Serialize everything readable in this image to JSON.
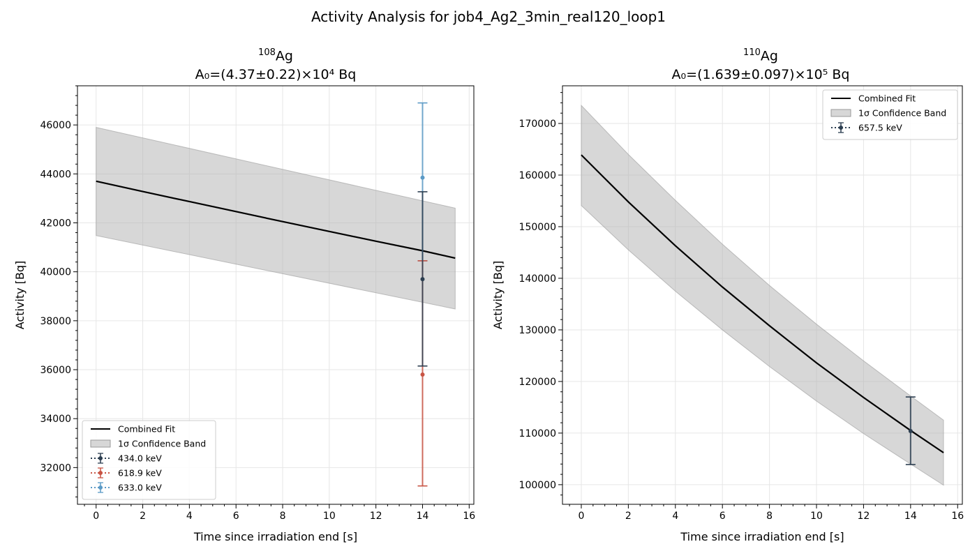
{
  "suptitle": "Activity Analysis for job4_Ag2_3min_real120_loop1",
  "chart_data": [
    {
      "type": "line",
      "isotope_mass": "108",
      "isotope_symbol": "Ag",
      "subtitle": "A₀=(4.37±0.22)×10⁴ Bq",
      "xlabel": "Time since irradiation end [s]",
      "ylabel": "Activity [Bq]",
      "xlim": [
        -0.8,
        16.2
      ],
      "ylim": [
        30500,
        47600
      ],
      "xticks": [
        0,
        2,
        4,
        6,
        8,
        10,
        12,
        14,
        16
      ],
      "yticks": [
        32000,
        34000,
        36000,
        38000,
        40000,
        42000,
        44000,
        46000
      ],
      "grid": true,
      "legend_position": "lower left",
      "fit": {
        "name": "Combined Fit",
        "color": "#000000",
        "x": [
          0,
          2,
          4,
          6,
          8,
          10,
          12,
          14,
          15.4
        ],
        "y": [
          43700,
          43280,
          42870,
          42460,
          42050,
          41650,
          41250,
          40860,
          40560
        ]
      },
      "band": {
        "name": "1σ Confidence Band",
        "color": "#b0b0b0",
        "x": [
          0,
          15.4
        ],
        "lower": [
          41480,
          38480
        ],
        "upper": [
          45900,
          42600
        ]
      },
      "series": [
        {
          "name": "633.0 keV",
          "color": "#5b9ac6",
          "x": 14,
          "y": 43850,
          "yerr_low": 40450,
          "yerr_high": 46900
        },
        {
          "name": "618.9 keV",
          "color": "#c85444",
          "x": 14,
          "y": 35800,
          "yerr_low": 31250,
          "yerr_high": 40450
        },
        {
          "name": "434.0 keV",
          "color": "#2c3e50",
          "x": 14,
          "y": 39700,
          "yerr_low": 36150,
          "yerr_high": 43270
        }
      ],
      "legend": [
        "Combined Fit",
        "1σ Confidence Band",
        "434.0 keV",
        "618.9 keV",
        "633.0 keV"
      ]
    },
    {
      "type": "line",
      "isotope_mass": "110",
      "isotope_symbol": "Ag",
      "subtitle": "A₀=(1.639±0.097)×10⁵ Bq",
      "xlabel": "Time since irradiation end [s]",
      "ylabel": "Activity [Bq]",
      "xlim": [
        -0.8,
        16.2
      ],
      "ylim": [
        96200,
        177300
      ],
      "xticks": [
        0,
        2,
        4,
        6,
        8,
        10,
        12,
        14,
        16
      ],
      "yticks": [
        100000,
        110000,
        120000,
        130000,
        140000,
        150000,
        160000,
        170000
      ],
      "grid": true,
      "legend_position": "upper right",
      "fit": {
        "name": "Combined Fit",
        "color": "#000000",
        "x": [
          0,
          2,
          4,
          6,
          8,
          10,
          12,
          14,
          15.4
        ],
        "y": [
          163900,
          154800,
          146300,
          138300,
          130800,
          123600,
          116900,
          110500,
          106200
        ]
      },
      "band": {
        "name": "1σ Confidence Band",
        "color": "#b0b0b0",
        "x": [
          0,
          2,
          4,
          6,
          8,
          10,
          12,
          14,
          15.4
        ],
        "lower": [
          154100,
          145500,
          137500,
          130000,
          122900,
          116200,
          109900,
          104000,
          99900
        ],
        "upper": [
          173500,
          164000,
          155100,
          146600,
          138600,
          131100,
          124000,
          117200,
          112500
        ]
      },
      "series": [
        {
          "name": "657.5 keV",
          "color": "#2c3e50",
          "x": 14,
          "y": 110400,
          "yerr_low": 103900,
          "yerr_high": 117000
        }
      ],
      "legend": [
        "Combined Fit",
        "1σ Confidence Band",
        "657.5 keV"
      ]
    }
  ]
}
